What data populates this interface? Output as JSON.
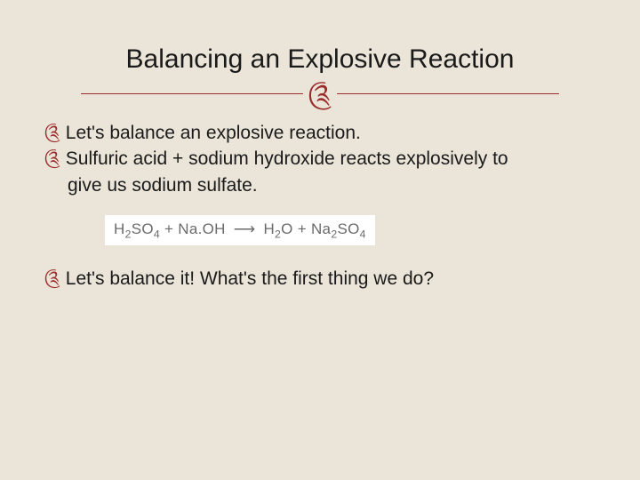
{
  "slide": {
    "background_color": "#eae5d8",
    "accent_color": "#9c2b2b",
    "text_color": "#1a1a1a",
    "title": "Balancing an Explosive Reaction",
    "title_fontsize": 30,
    "flourish_glyph": "༊",
    "bullets": [
      {
        "text": "Let's balance an explosive reaction."
      },
      {
        "text": "Sulfuric acid + sodium hydroxide reacts explosively to",
        "continuation": "give us sodium sulfate."
      },
      {
        "text": "Let's balance it! What's the first thing we do?"
      }
    ],
    "bullet_fontsize": 21,
    "equation": {
      "background": "#ffffff",
      "text_color": "#6b6b6b",
      "fontsize": 17,
      "reactant1": "H₂SO₄",
      "reactant2": "Na.OH",
      "product1": "H₂O",
      "product2": "Na₂SO₄",
      "plus": "+",
      "arrow": "⟶"
    }
  }
}
